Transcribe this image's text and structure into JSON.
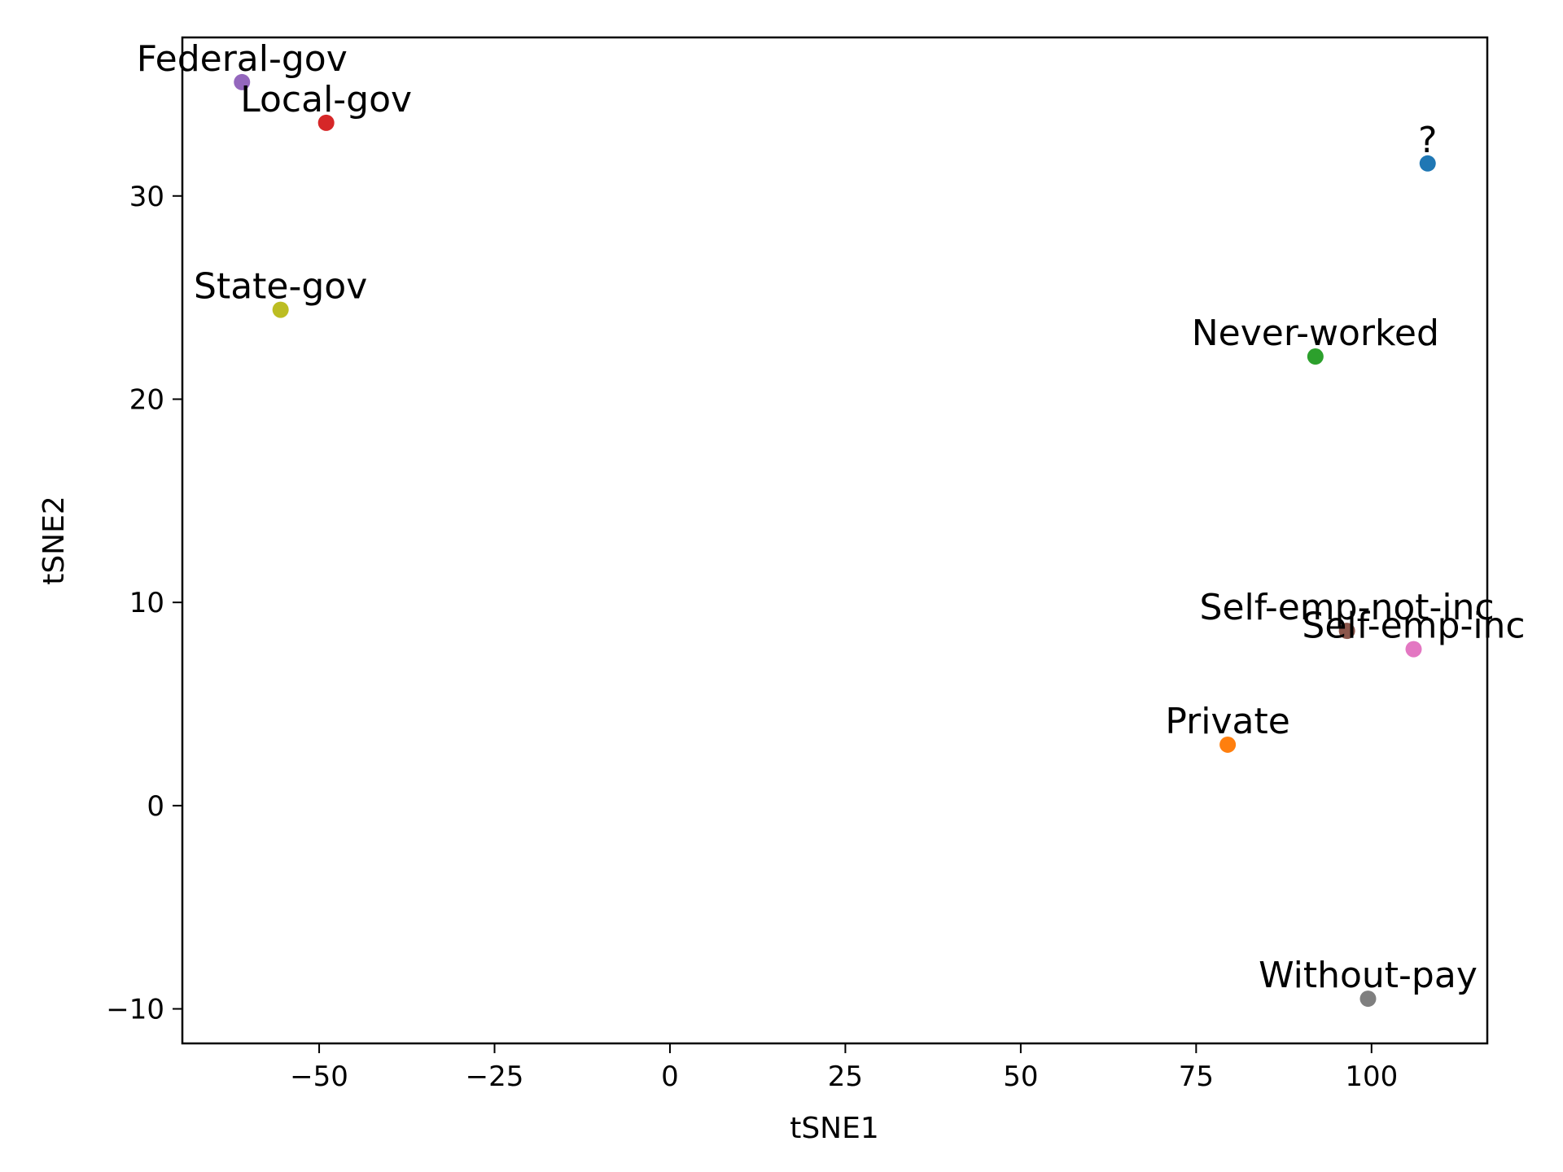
{
  "chart_data": {
    "type": "scatter",
    "xlabel": "tSNE1",
    "ylabel": "tSNE2",
    "xlim": [
      -69.5,
      116.5
    ],
    "ylim": [
      -11.7,
      37.8
    ],
    "x_ticks": [
      -50,
      -25,
      0,
      25,
      50,
      75,
      100
    ],
    "x_tick_labels": [
      "−50",
      "−25",
      "0",
      "25",
      "50",
      "75",
      "100"
    ],
    "y_ticks": [
      -10,
      0,
      10,
      20,
      30
    ],
    "y_tick_labels": [
      "−10",
      "0",
      "10",
      "20",
      "30"
    ],
    "grid": false,
    "points": [
      {
        "label": "?",
        "x": 108.0,
        "y": 31.6,
        "color": "#1f77b4"
      },
      {
        "label": "Federal-gov",
        "x": -61.0,
        "y": 35.6,
        "color": "#9467bd"
      },
      {
        "label": "Local-gov",
        "x": -49.0,
        "y": 33.6,
        "color": "#d62728"
      },
      {
        "label": "Never-worked",
        "x": 92.0,
        "y": 22.1,
        "color": "#2ca02c"
      },
      {
        "label": "Private",
        "x": 79.5,
        "y": 3.0,
        "color": "#ff7f0e"
      },
      {
        "label": "Self-emp-inc",
        "x": 106.0,
        "y": 7.7,
        "color": "#e377c2"
      },
      {
        "label": "Self-emp-not-inc",
        "x": 96.5,
        "y": 8.6,
        "color": "#8c564b"
      },
      {
        "label": "State-gov",
        "x": -55.5,
        "y": 24.4,
        "color": "#bcbd22"
      },
      {
        "label": "Without-pay",
        "x": 99.5,
        "y": -9.5,
        "color": "#7f7f7f"
      }
    ]
  }
}
